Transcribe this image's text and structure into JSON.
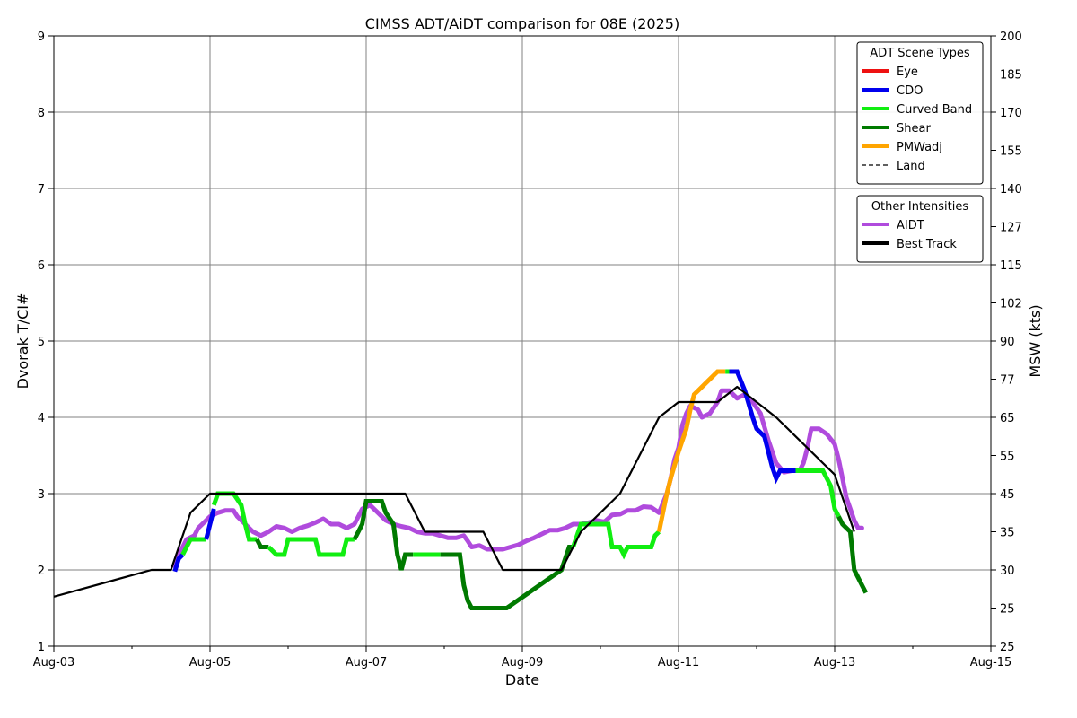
{
  "chart_data": {
    "type": "line",
    "title": "CIMSS ADT/AiDT comparison for 08E (2025)",
    "xlabel": "Date",
    "ylabel": "Dvorak T/CI#",
    "ylabel_right": "MSW (kts)",
    "x_range": [
      "2025-08-03",
      "2025-08-15"
    ],
    "ylim": [
      1,
      9
    ],
    "x_ticks": [
      "Aug-03",
      "Aug-05",
      "Aug-07",
      "Aug-09",
      "Aug-11",
      "Aug-13",
      "Aug-15"
    ],
    "y_ticks": [
      "1",
      "2",
      "3",
      "4",
      "5",
      "6",
      "7",
      "8",
      "9"
    ],
    "y2_ticks": [
      {
        "t": 1,
        "label": "25"
      },
      {
        "t": 1.5,
        "label": "25"
      },
      {
        "t": 2,
        "label": "30"
      },
      {
        "t": 2.5,
        "label": "35"
      },
      {
        "t": 3,
        "label": "45"
      },
      {
        "t": 3.5,
        "label": "55"
      },
      {
        "t": 4,
        "label": "65"
      },
      {
        "t": 4.5,
        "label": "77"
      },
      {
        "t": 5,
        "label": "90"
      },
      {
        "t": 5.5,
        "label": "102"
      },
      {
        "t": 6,
        "label": "115"
      },
      {
        "t": 6.5,
        "label": "127"
      },
      {
        "t": 7,
        "label": "140"
      },
      {
        "t": 7.5,
        "label": "155"
      },
      {
        "t": 8,
        "label": "170"
      },
      {
        "t": 8.5,
        "label": "185"
      },
      {
        "t": 9,
        "label": "200"
      }
    ],
    "grid": true,
    "legends": [
      {
        "title": "ADT Scene Types",
        "placement": "top-right",
        "entries": [
          {
            "label": "Eye",
            "color": "#ee1111",
            "style": "solid"
          },
          {
            "label": "CDO",
            "color": "#0000ee",
            "style": "solid"
          },
          {
            "label": "Curved Band",
            "color": "#11ee11",
            "style": "solid"
          },
          {
            "label": "Shear",
            "color": "#007a00",
            "style": "solid"
          },
          {
            "label": "PMWadj",
            "color": "#ffa500",
            "style": "solid"
          },
          {
            "label": "Land",
            "color": "#000000",
            "style": "dashed"
          }
        ]
      },
      {
        "title": "Other Intensities",
        "placement": "top-right",
        "entries": [
          {
            "label": "AIDT",
            "color": "#b04bdd",
            "style": "solid"
          },
          {
            "label": "Best Track",
            "color": "#000000",
            "style": "solid"
          }
        ]
      }
    ],
    "series": [
      {
        "name": "Best Track",
        "color": "#000000",
        "points": [
          [
            3.0,
            1.65
          ],
          [
            4.25,
            2.0
          ],
          [
            4.5,
            2.0
          ],
          [
            4.75,
            2.75
          ],
          [
            5.0,
            3.0
          ],
          [
            7.5,
            3.0
          ],
          [
            7.75,
            2.5
          ],
          [
            8.5,
            2.5
          ],
          [
            8.75,
            2.0
          ],
          [
            9.5,
            2.0
          ],
          [
            9.75,
            2.5
          ],
          [
            10.0,
            2.75
          ],
          [
            10.25,
            3.0
          ],
          [
            10.75,
            4.0
          ],
          [
            11.0,
            4.2
          ],
          [
            11.5,
            4.2
          ],
          [
            11.75,
            4.4
          ],
          [
            12.25,
            4.0
          ],
          [
            13.0,
            3.25
          ],
          [
            13.25,
            2.5
          ]
        ]
      },
      {
        "name": "AIDT",
        "color": "#b04bdd",
        "points": [
          [
            4.55,
            2.05
          ],
          [
            4.6,
            2.2
          ],
          [
            4.7,
            2.4
          ],
          [
            4.8,
            2.45
          ],
          [
            4.85,
            2.55
          ],
          [
            4.95,
            2.65
          ],
          [
            5.0,
            2.7
          ],
          [
            5.1,
            2.75
          ],
          [
            5.2,
            2.78
          ],
          [
            5.3,
            2.78
          ],
          [
            5.35,
            2.7
          ],
          [
            5.45,
            2.6
          ],
          [
            5.55,
            2.5
          ],
          [
            5.65,
            2.45
          ],
          [
            5.75,
            2.5
          ],
          [
            5.85,
            2.57
          ],
          [
            5.95,
            2.55
          ],
          [
            6.05,
            2.5
          ],
          [
            6.15,
            2.55
          ],
          [
            6.25,
            2.58
          ],
          [
            6.35,
            2.62
          ],
          [
            6.45,
            2.67
          ],
          [
            6.55,
            2.6
          ],
          [
            6.65,
            2.6
          ],
          [
            6.75,
            2.55
          ],
          [
            6.85,
            2.6
          ],
          [
            6.95,
            2.8
          ],
          [
            7.05,
            2.85
          ],
          [
            7.15,
            2.75
          ],
          [
            7.25,
            2.65
          ],
          [
            7.35,
            2.6
          ],
          [
            7.45,
            2.57
          ],
          [
            7.55,
            2.55
          ],
          [
            7.65,
            2.5
          ],
          [
            7.75,
            2.48
          ],
          [
            7.85,
            2.48
          ],
          [
            7.95,
            2.45
          ],
          [
            8.05,
            2.42
          ],
          [
            8.15,
            2.42
          ],
          [
            8.25,
            2.45
          ],
          [
            8.3,
            2.38
          ],
          [
            8.35,
            2.3
          ],
          [
            8.45,
            2.32
          ],
          [
            8.55,
            2.27
          ],
          [
            8.65,
            2.27
          ],
          [
            8.75,
            2.27
          ],
          [
            8.85,
            2.3
          ],
          [
            8.95,
            2.33
          ],
          [
            9.05,
            2.38
          ],
          [
            9.15,
            2.42
          ],
          [
            9.25,
            2.47
          ],
          [
            9.35,
            2.52
          ],
          [
            9.45,
            2.52
          ],
          [
            9.55,
            2.55
          ],
          [
            9.65,
            2.6
          ],
          [
            9.75,
            2.6
          ],
          [
            9.85,
            2.62
          ],
          [
            9.95,
            2.65
          ],
          [
            10.05,
            2.63
          ],
          [
            10.15,
            2.72
          ],
          [
            10.25,
            2.73
          ],
          [
            10.35,
            2.78
          ],
          [
            10.45,
            2.78
          ],
          [
            10.55,
            2.83
          ],
          [
            10.65,
            2.82
          ],
          [
            10.75,
            2.75
          ],
          [
            10.85,
            3.0
          ],
          [
            10.9,
            3.2
          ],
          [
            10.95,
            3.45
          ],
          [
            11.0,
            3.6
          ],
          [
            11.05,
            3.9
          ],
          [
            11.1,
            4.05
          ],
          [
            11.15,
            4.15
          ],
          [
            11.25,
            4.1
          ],
          [
            11.3,
            4.0
          ],
          [
            11.4,
            4.05
          ],
          [
            11.5,
            4.2
          ],
          [
            11.55,
            4.35
          ],
          [
            11.65,
            4.35
          ],
          [
            11.75,
            4.25
          ],
          [
            11.85,
            4.3
          ],
          [
            11.95,
            4.2
          ],
          [
            12.05,
            4.05
          ],
          [
            12.15,
            3.7
          ],
          [
            12.25,
            3.4
          ],
          [
            12.35,
            3.28
          ],
          [
            12.45,
            3.3
          ],
          [
            12.55,
            3.3
          ],
          [
            12.6,
            3.4
          ],
          [
            12.65,
            3.6
          ],
          [
            12.7,
            3.85
          ],
          [
            12.8,
            3.85
          ],
          [
            12.9,
            3.78
          ],
          [
            13.0,
            3.65
          ],
          [
            13.05,
            3.45
          ],
          [
            13.1,
            3.2
          ],
          [
            13.15,
            2.95
          ],
          [
            13.2,
            2.8
          ],
          [
            13.25,
            2.65
          ],
          [
            13.3,
            2.55
          ],
          [
            13.35,
            2.55
          ]
        ]
      },
      {
        "name": "ADT",
        "segments": [
          {
            "scene": "CDO",
            "color": "#0000ee",
            "points": [
              [
                4.55,
                1.98
              ],
              [
                4.6,
                2.15
              ],
              [
                4.65,
                2.2
              ]
            ]
          },
          {
            "scene": "Curved Band",
            "color": "#11ee11",
            "points": [
              [
                4.65,
                2.2
              ],
              [
                4.7,
                2.3
              ],
              [
                4.75,
                2.4
              ],
              [
                4.95,
                2.4
              ]
            ]
          },
          {
            "scene": "CDO",
            "color": "#0000ee",
            "points": [
              [
                4.95,
                2.4
              ],
              [
                5.0,
                2.6
              ],
              [
                5.05,
                2.8
              ]
            ]
          },
          {
            "scene": "Curved Band",
            "color": "#11ee11",
            "points": [
              [
                5.05,
                2.85
              ],
              [
                5.1,
                3.0
              ],
              [
                5.3,
                3.0
              ],
              [
                5.4,
                2.85
              ],
              [
                5.45,
                2.6
              ],
              [
                5.5,
                2.4
              ],
              [
                5.6,
                2.4
              ]
            ]
          },
          {
            "scene": "Shear",
            "color": "#007a00",
            "points": [
              [
                5.6,
                2.4
              ],
              [
                5.65,
                2.3
              ],
              [
                5.75,
                2.3
              ]
            ]
          },
          {
            "scene": "Curved Band",
            "color": "#11ee11",
            "points": [
              [
                5.75,
                2.3
              ],
              [
                5.85,
                2.2
              ],
              [
                5.95,
                2.2
              ],
              [
                6.0,
                2.4
              ],
              [
                6.35,
                2.4
              ],
              [
                6.4,
                2.2
              ],
              [
                6.7,
                2.2
              ],
              [
                6.75,
                2.4
              ],
              [
                6.85,
                2.4
              ]
            ]
          },
          {
            "scene": "Shear",
            "color": "#007a00",
            "points": [
              [
                6.85,
                2.4
              ],
              [
                6.95,
                2.6
              ],
              [
                7.0,
                2.9
              ],
              [
                7.2,
                2.9
              ],
              [
                7.25,
                2.75
              ],
              [
                7.35,
                2.6
              ],
              [
                7.4,
                2.2
              ],
              [
                7.45,
                2.0
              ],
              [
                7.5,
                2.2
              ],
              [
                7.6,
                2.2
              ]
            ]
          },
          {
            "scene": "Curved Band",
            "color": "#11ee11",
            "points": [
              [
                7.6,
                2.2
              ],
              [
                7.95,
                2.2
              ]
            ]
          },
          {
            "scene": "Shear",
            "color": "#007a00",
            "points": [
              [
                7.95,
                2.2
              ],
              [
                8.2,
                2.2
              ],
              [
                8.25,
                1.8
              ],
              [
                8.3,
                1.6
              ],
              [
                8.35,
                1.5
              ],
              [
                8.8,
                1.5
              ],
              [
                9.5,
                2.0
              ],
              [
                9.6,
                2.3
              ],
              [
                9.65,
                2.3
              ]
            ]
          },
          {
            "scene": "Curved Band",
            "color": "#11ee11",
            "points": [
              [
                9.65,
                2.3
              ],
              [
                9.75,
                2.6
              ],
              [
                10.1,
                2.6
              ],
              [
                10.15,
                2.3
              ],
              [
                10.25,
                2.3
              ],
              [
                10.3,
                2.2
              ],
              [
                10.35,
                2.3
              ],
              [
                10.65,
                2.3
              ],
              [
                10.7,
                2.45
              ],
              [
                10.75,
                2.5
              ]
            ]
          },
          {
            "scene": "PMWadj",
            "color": "#ffa500",
            "points": [
              [
                10.75,
                2.5
              ],
              [
                10.8,
                2.75
              ],
              [
                10.85,
                3.0
              ],
              [
                10.9,
                3.2
              ],
              [
                11.0,
                3.55
              ],
              [
                11.1,
                3.85
              ],
              [
                11.15,
                4.1
              ],
              [
                11.2,
                4.3
              ],
              [
                11.25,
                4.35
              ],
              [
                11.35,
                4.45
              ],
              [
                11.45,
                4.55
              ],
              [
                11.5,
                4.6
              ],
              [
                11.6,
                4.6
              ]
            ]
          },
          {
            "scene": "Curved Band",
            "color": "#11ee11",
            "points": [
              [
                11.6,
                4.6
              ],
              [
                11.65,
                4.6
              ]
            ]
          },
          {
            "scene": "CDO",
            "color": "#0000ee",
            "points": [
              [
                11.65,
                4.6
              ],
              [
                11.75,
                4.6
              ],
              [
                11.85,
                4.35
              ],
              [
                11.95,
                4.0
              ],
              [
                12.0,
                3.85
              ],
              [
                12.1,
                3.75
              ],
              [
                12.15,
                3.55
              ],
              [
                12.2,
                3.35
              ],
              [
                12.25,
                3.2
              ],
              [
                12.3,
                3.3
              ],
              [
                12.5,
                3.3
              ]
            ]
          },
          {
            "scene": "Curved Band",
            "color": "#11ee11",
            "points": [
              [
                12.5,
                3.3
              ],
              [
                12.85,
                3.3
              ],
              [
                12.95,
                3.1
              ],
              [
                13.0,
                2.8
              ],
              [
                13.05,
                2.7
              ]
            ]
          },
          {
            "scene": "Shear",
            "color": "#007a00",
            "points": [
              [
                13.05,
                2.7
              ],
              [
                13.1,
                2.6
              ],
              [
                13.2,
                2.5
              ],
              [
                13.25,
                2.0
              ],
              [
                13.3,
                1.9
              ],
              [
                13.35,
                1.8
              ],
              [
                13.4,
                1.7
              ]
            ]
          }
        ]
      }
    ]
  }
}
